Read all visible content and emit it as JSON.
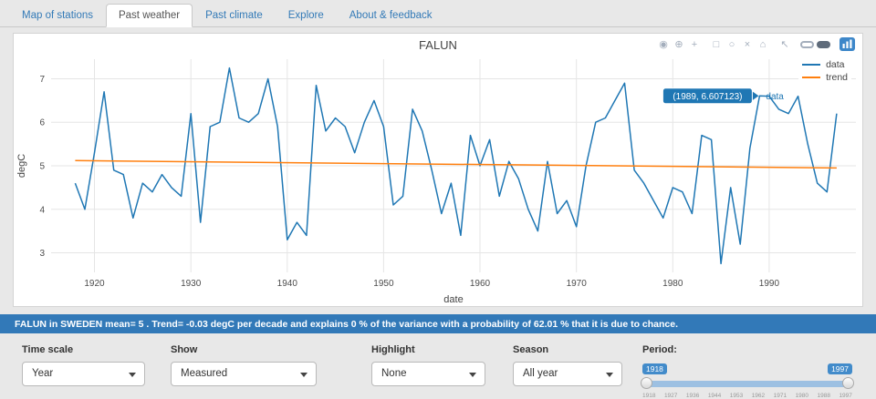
{
  "tabs": [
    {
      "label": "Map of stations",
      "active": false
    },
    {
      "label": "Past weather",
      "active": true
    },
    {
      "label": "Past climate",
      "active": false
    },
    {
      "label": "Explore",
      "active": false
    },
    {
      "label": "About & feedback",
      "active": false
    }
  ],
  "chart": {
    "title": "FALUN",
    "modebar": [
      {
        "name": "camera",
        "glyph": "◉"
      },
      {
        "name": "zoom",
        "glyph": "⊕"
      },
      {
        "name": "pan",
        "glyph": "+"
      },
      {
        "name": "box-select",
        "glyph": "□"
      },
      {
        "name": "lasso-select",
        "glyph": "○"
      },
      {
        "name": "reset-axes",
        "glyph": "×"
      },
      {
        "name": "home",
        "glyph": "⌂"
      },
      {
        "name": "autoscale",
        "glyph": "↖"
      }
    ],
    "legend": [
      {
        "label": "data",
        "color": "#1f77b4"
      },
      {
        "label": "trend",
        "color": "#ff7f0e"
      }
    ],
    "tooltip": {
      "text": "(1989, 6.607123)",
      "trace": "data",
      "color": "#1f77b4",
      "point": [
        1989,
        6.607123
      ]
    }
  },
  "chart_data": {
    "type": "line",
    "title": "FALUN",
    "xlabel": "date",
    "ylabel": "degC",
    "xlim": [
      1915.5,
      1999
    ],
    "ylim": [
      2.55,
      7.45
    ],
    "xticks": [
      1920,
      1930,
      1940,
      1950,
      1960,
      1970,
      1980,
      1990
    ],
    "yticks": [
      3,
      4,
      5,
      6,
      7
    ],
    "grid": true,
    "legend_position": "top-right",
    "series": [
      {
        "name": "data",
        "color": "#1f77b4",
        "x": [
          1918,
          1919,
          1920,
          1921,
          1922,
          1923,
          1924,
          1925,
          1926,
          1927,
          1928,
          1929,
          1930,
          1931,
          1932,
          1933,
          1934,
          1935,
          1936,
          1937,
          1938,
          1939,
          1940,
          1941,
          1942,
          1943,
          1944,
          1945,
          1946,
          1947,
          1948,
          1949,
          1950,
          1951,
          1952,
          1953,
          1954,
          1955,
          1956,
          1957,
          1958,
          1959,
          1960,
          1961,
          1962,
          1963,
          1964,
          1965,
          1966,
          1967,
          1968,
          1969,
          1970,
          1971,
          1972,
          1973,
          1974,
          1975,
          1976,
          1977,
          1978,
          1979,
          1980,
          1981,
          1982,
          1983,
          1984,
          1985,
          1986,
          1987,
          1988,
          1989,
          1990,
          1991,
          1992,
          1993,
          1994,
          1995,
          1996,
          1997
        ],
        "y": [
          4.6,
          4.0,
          5.3,
          6.7,
          4.9,
          4.8,
          3.8,
          4.6,
          4.4,
          4.8,
          4.5,
          4.3,
          6.2,
          3.7,
          5.9,
          6.0,
          7.25,
          6.1,
          6.0,
          6.2,
          7.0,
          5.9,
          3.3,
          3.7,
          3.4,
          6.85,
          5.8,
          6.1,
          5.9,
          5.3,
          6.0,
          6.5,
          5.9,
          4.1,
          4.3,
          6.3,
          5.8,
          4.9,
          3.9,
          4.6,
          3.4,
          5.7,
          5.0,
          5.6,
          4.3,
          5.1,
          4.7,
          4.0,
          3.5,
          5.1,
          3.9,
          4.2,
          3.6,
          5.0,
          6.0,
          6.1,
          6.5,
          6.9,
          4.9,
          4.6,
          4.2,
          3.8,
          4.5,
          4.4,
          3.9,
          5.7,
          5.6,
          2.75,
          4.5,
          3.2,
          5.4,
          6.607123,
          6.6,
          6.3,
          6.2,
          6.6,
          5.5,
          4.6,
          4.4,
          6.2
        ]
      },
      {
        "name": "trend",
        "color": "#ff7f0e",
        "x": [
          1918,
          1997
        ],
        "y": [
          5.12,
          4.95
        ]
      }
    ]
  },
  "status_bar": {
    "text": "FALUN in SWEDEN mean= 5 . Trend= -0.03 degC per decade and explains 0 % of the variance with a probability of 62.01 % that it is due to chance."
  },
  "controls": {
    "time_scale": {
      "label": "Time scale",
      "value": "Year"
    },
    "show": {
      "label": "Show",
      "value": "Measured"
    },
    "highlight": {
      "label": "Highlight",
      "value": "None"
    },
    "season": {
      "label": "Season",
      "value": "All year"
    },
    "period": {
      "label": "Period:",
      "from": "1918",
      "to": "1997",
      "ticks": [
        "1918",
        "1927",
        "1936",
        "1944",
        "1953",
        "1962",
        "1971",
        "1980",
        "1988",
        "1997"
      ]
    }
  }
}
